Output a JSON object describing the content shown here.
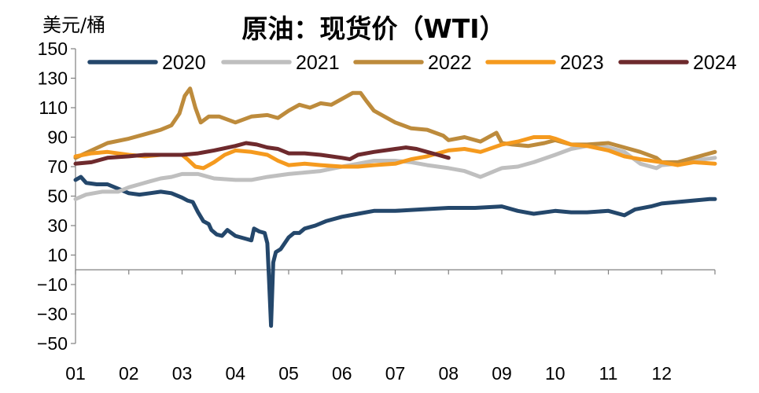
{
  "chart_data": {
    "type": "line",
    "title": "原油：现货价（WTI）",
    "ylabel": "美元/桶",
    "xlabel": "",
    "ylim": [
      -50,
      150
    ],
    "yticks": [
      150,
      130,
      110,
      90,
      70,
      50,
      30,
      10,
      -10,
      -30,
      -50
    ],
    "ytick_labels": [
      "150",
      "130",
      "110",
      "90",
      "70",
      "50",
      "30",
      "10",
      "−10",
      "−30",
      "−50"
    ],
    "x_month_labels": [
      "01",
      "02",
      "03",
      "04",
      "05",
      "06",
      "07",
      "08",
      "09",
      "10",
      "11",
      "12"
    ],
    "legend_position": "top",
    "x_unit": "month of year (1.0 = start of Jan, 13.0 = end of Dec)",
    "series": [
      {
        "name": "2020",
        "color": "#24476B",
        "points": [
          [
            1.0,
            61
          ],
          [
            1.1,
            63
          ],
          [
            1.2,
            59
          ],
          [
            1.4,
            58
          ],
          [
            1.6,
            58
          ],
          [
            1.8,
            55
          ],
          [
            2.0,
            52
          ],
          [
            2.2,
            51
          ],
          [
            2.4,
            52
          ],
          [
            2.6,
            53
          ],
          [
            2.8,
            52
          ],
          [
            3.0,
            49
          ],
          [
            3.1,
            47
          ],
          [
            3.2,
            46
          ],
          [
            3.3,
            39
          ],
          [
            3.4,
            33
          ],
          [
            3.5,
            31
          ],
          [
            3.55,
            27
          ],
          [
            3.65,
            24
          ],
          [
            3.75,
            23
          ],
          [
            3.85,
            27
          ],
          [
            4.0,
            23
          ],
          [
            4.1,
            22
          ],
          [
            4.2,
            21
          ],
          [
            4.3,
            20
          ],
          [
            4.35,
            28
          ],
          [
            4.45,
            26
          ],
          [
            4.55,
            25
          ],
          [
            4.6,
            18
          ],
          [
            4.63,
            -5
          ],
          [
            4.67,
            -38
          ],
          [
            4.71,
            5
          ],
          [
            4.76,
            12
          ],
          [
            4.85,
            14
          ],
          [
            5.0,
            22
          ],
          [
            5.1,
            25
          ],
          [
            5.2,
            25
          ],
          [
            5.3,
            28
          ],
          [
            5.5,
            30
          ],
          [
            5.7,
            33
          ],
          [
            6.0,
            36
          ],
          [
            6.3,
            38
          ],
          [
            6.6,
            40
          ],
          [
            7.0,
            40
          ],
          [
            7.5,
            41
          ],
          [
            8.0,
            42
          ],
          [
            8.5,
            42
          ],
          [
            9.0,
            43
          ],
          [
            9.3,
            40
          ],
          [
            9.6,
            38
          ],
          [
            10.0,
            40
          ],
          [
            10.3,
            39
          ],
          [
            10.6,
            39
          ],
          [
            11.0,
            40
          ],
          [
            11.3,
            37
          ],
          [
            11.5,
            41
          ],
          [
            11.8,
            43
          ],
          [
            12.0,
            45
          ],
          [
            12.3,
            46
          ],
          [
            12.6,
            47
          ],
          [
            12.9,
            48
          ],
          [
            13.0,
            48
          ]
        ]
      },
      {
        "name": "2021",
        "color": "#BFBFBF",
        "points": [
          [
            1.0,
            48
          ],
          [
            1.2,
            51
          ],
          [
            1.5,
            53
          ],
          [
            1.8,
            53
          ],
          [
            2.0,
            56
          ],
          [
            2.2,
            58
          ],
          [
            2.4,
            60
          ],
          [
            2.6,
            62
          ],
          [
            2.8,
            63
          ],
          [
            3.0,
            65
          ],
          [
            3.3,
            65
          ],
          [
            3.6,
            62
          ],
          [
            4.0,
            61
          ],
          [
            4.3,
            61
          ],
          [
            4.6,
            63
          ],
          [
            5.0,
            65
          ],
          [
            5.3,
            66
          ],
          [
            5.6,
            67
          ],
          [
            6.0,
            70
          ],
          [
            6.3,
            72
          ],
          [
            6.6,
            74
          ],
          [
            7.0,
            74
          ],
          [
            7.3,
            73
          ],
          [
            7.6,
            71
          ],
          [
            8.0,
            69
          ],
          [
            8.3,
            67
          ],
          [
            8.6,
            63
          ],
          [
            9.0,
            69
          ],
          [
            9.3,
            70
          ],
          [
            9.6,
            73
          ],
          [
            10.0,
            78
          ],
          [
            10.3,
            82
          ],
          [
            10.6,
            84
          ],
          [
            11.0,
            83
          ],
          [
            11.3,
            80
          ],
          [
            11.6,
            72
          ],
          [
            11.9,
            69
          ],
          [
            12.0,
            71
          ],
          [
            12.3,
            72
          ],
          [
            12.6,
            74
          ],
          [
            13.0,
            76
          ]
        ]
      },
      {
        "name": "2022",
        "color": "#BD8B3C",
        "points": [
          [
            1.0,
            76
          ],
          [
            1.3,
            81
          ],
          [
            1.6,
            86
          ],
          [
            2.0,
            89
          ],
          [
            2.3,
            92
          ],
          [
            2.6,
            95
          ],
          [
            2.8,
            98
          ],
          [
            2.95,
            106
          ],
          [
            3.05,
            118
          ],
          [
            3.15,
            123
          ],
          [
            3.25,
            110
          ],
          [
            3.35,
            100
          ],
          [
            3.5,
            104
          ],
          [
            3.7,
            104
          ],
          [
            4.0,
            100
          ],
          [
            4.3,
            104
          ],
          [
            4.6,
            105
          ],
          [
            4.8,
            103
          ],
          [
            5.0,
            108
          ],
          [
            5.2,
            112
          ],
          [
            5.4,
            110
          ],
          [
            5.6,
            113
          ],
          [
            5.8,
            112
          ],
          [
            6.0,
            116
          ],
          [
            6.2,
            120
          ],
          [
            6.35,
            120
          ],
          [
            6.45,
            115
          ],
          [
            6.6,
            108
          ],
          [
            6.8,
            104
          ],
          [
            7.0,
            100
          ],
          [
            7.3,
            96
          ],
          [
            7.6,
            95
          ],
          [
            7.9,
            91
          ],
          [
            8.0,
            88
          ],
          [
            8.3,
            90
          ],
          [
            8.6,
            87
          ],
          [
            8.9,
            93
          ],
          [
            9.0,
            86
          ],
          [
            9.2,
            85
          ],
          [
            9.5,
            84
          ],
          [
            9.8,
            86
          ],
          [
            10.0,
            88
          ],
          [
            10.3,
            85
          ],
          [
            10.6,
            85
          ],
          [
            11.0,
            86
          ],
          [
            11.3,
            83
          ],
          [
            11.6,
            80
          ],
          [
            11.9,
            76
          ],
          [
            12.0,
            73
          ],
          [
            12.3,
            73
          ],
          [
            12.6,
            76
          ],
          [
            13.0,
            80
          ]
        ]
      },
      {
        "name": "2023",
        "color": "#F59A1E",
        "points": [
          [
            1.0,
            77
          ],
          [
            1.3,
            79
          ],
          [
            1.6,
            80
          ],
          [
            2.0,
            78
          ],
          [
            2.3,
            77
          ],
          [
            2.6,
            78
          ],
          [
            3.0,
            78
          ],
          [
            3.1,
            75
          ],
          [
            3.25,
            70
          ],
          [
            3.4,
            69
          ],
          [
            3.6,
            73
          ],
          [
            3.8,
            78
          ],
          [
            4.0,
            81
          ],
          [
            4.3,
            80
          ],
          [
            4.6,
            78
          ],
          [
            4.8,
            74
          ],
          [
            5.0,
            71
          ],
          [
            5.3,
            72
          ],
          [
            5.6,
            71
          ],
          [
            6.0,
            70
          ],
          [
            6.3,
            70
          ],
          [
            6.6,
            71
          ],
          [
            7.0,
            72
          ],
          [
            7.3,
            75
          ],
          [
            7.6,
            77
          ],
          [
            8.0,
            81
          ],
          [
            8.3,
            82
          ],
          [
            8.6,
            80
          ],
          [
            9.0,
            85
          ],
          [
            9.3,
            87
          ],
          [
            9.6,
            90
          ],
          [
            9.9,
            90
          ],
          [
            10.0,
            89
          ],
          [
            10.3,
            85
          ],
          [
            10.6,
            84
          ],
          [
            11.0,
            81
          ],
          [
            11.3,
            77
          ],
          [
            11.6,
            75
          ],
          [
            12.0,
            73
          ],
          [
            12.3,
            71
          ],
          [
            12.6,
            73
          ],
          [
            13.0,
            72
          ]
        ]
      },
      {
        "name": "2024",
        "color": "#6E2A2D",
        "points": [
          [
            1.0,
            72
          ],
          [
            1.3,
            73
          ],
          [
            1.6,
            76
          ],
          [
            2.0,
            77
          ],
          [
            2.3,
            78
          ],
          [
            2.6,
            78
          ],
          [
            3.0,
            78
          ],
          [
            3.3,
            79
          ],
          [
            3.6,
            81
          ],
          [
            4.0,
            84
          ],
          [
            4.2,
            86
          ],
          [
            4.4,
            85
          ],
          [
            4.6,
            83
          ],
          [
            4.8,
            82
          ],
          [
            5.0,
            79
          ],
          [
            5.3,
            79
          ],
          [
            5.6,
            78
          ],
          [
            6.0,
            76
          ],
          [
            6.15,
            75
          ],
          [
            6.3,
            78
          ],
          [
            6.6,
            80
          ],
          [
            7.0,
            82
          ],
          [
            7.2,
            83
          ],
          [
            7.4,
            82
          ],
          [
            7.6,
            80
          ],
          [
            7.8,
            78
          ],
          [
            8.0,
            76
          ]
        ]
      }
    ]
  }
}
